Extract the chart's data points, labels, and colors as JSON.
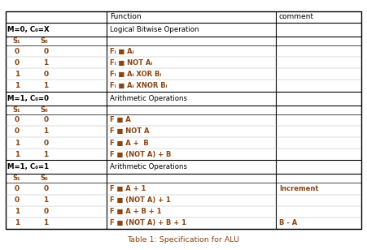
{
  "title": "Table 1: Specification for ALU",
  "title_color": "#8B4513",
  "background_color": "#ffffff",
  "border_color": "#000000",
  "text_color": "#000000",
  "brown_color": "#8B4513",
  "col_ratios": [
    0.285,
    0.475,
    0.24
  ],
  "sections": [
    {
      "mode_label": "M=0, C₀=X",
      "function_header": "Logical Bitwise Operation",
      "rows": [
        {
          "s1": "0",
          "s0": "0",
          "func": "Fᵢ ■ Aᵢ",
          "comment": ""
        },
        {
          "s1": "0",
          "s0": "1",
          "func": "Fᵢ ■ NOT Aᵢ",
          "comment": ""
        },
        {
          "s1": "1",
          "s0": "0",
          "func": "Fᵢ ■ Aᵢ XOR Bᵢ",
          "comment": ""
        },
        {
          "s1": "1",
          "s0": "1",
          "func": "Fᵢ ■ Aᵢ XNOR Bᵢ",
          "comment": ""
        }
      ]
    },
    {
      "mode_label": "M=1, C₀=0",
      "function_header": "Arithmetic Operations",
      "rows": [
        {
          "s1": "0",
          "s0": "0",
          "func": "F ■ A",
          "comment": ""
        },
        {
          "s1": "0",
          "s0": "1",
          "func": "F ■ NOT A",
          "comment": ""
        },
        {
          "s1": "1",
          "s0": "0",
          "func": "F ■ A +  B",
          "comment": ""
        },
        {
          "s1": "1",
          "s0": "1",
          "func": "F ■ (NOT A) + B",
          "comment": ""
        }
      ]
    },
    {
      "mode_label": "M=1, C₀=1",
      "function_header": "Arithmetic Operations",
      "rows": [
        {
          "s1": "0",
          "s0": "0",
          "func": "F ■ A + 1",
          "comment": "Increment"
        },
        {
          "s1": "0",
          "s0": "1",
          "func": "F ■ (NOT A) + 1",
          "comment": ""
        },
        {
          "s1": "1",
          "s0": "0",
          "func": "F ■ A + B + 1",
          "comment": ""
        },
        {
          "s1": "1",
          "s0": "1",
          "func": "F ■ (NOT A) + B + 1",
          "comment": "B - A"
        }
      ]
    }
  ]
}
